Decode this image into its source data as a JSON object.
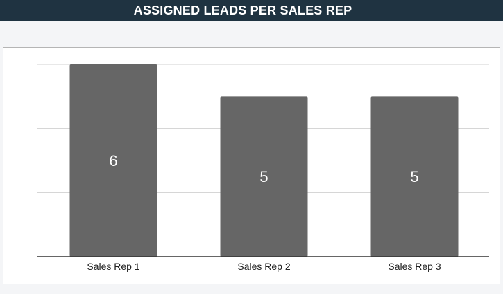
{
  "header": {
    "title": "ASSIGNED LEADS PER SALES REP"
  },
  "chart_data": {
    "type": "bar",
    "categories": [
      "Sales Rep 1",
      "Sales Rep 2",
      "Sales Rep 3"
    ],
    "values": [
      6,
      5,
      5
    ],
    "ylim": [
      0,
      6
    ],
    "grid": true,
    "bar_color": "#666666",
    "data_labels": true
  }
}
